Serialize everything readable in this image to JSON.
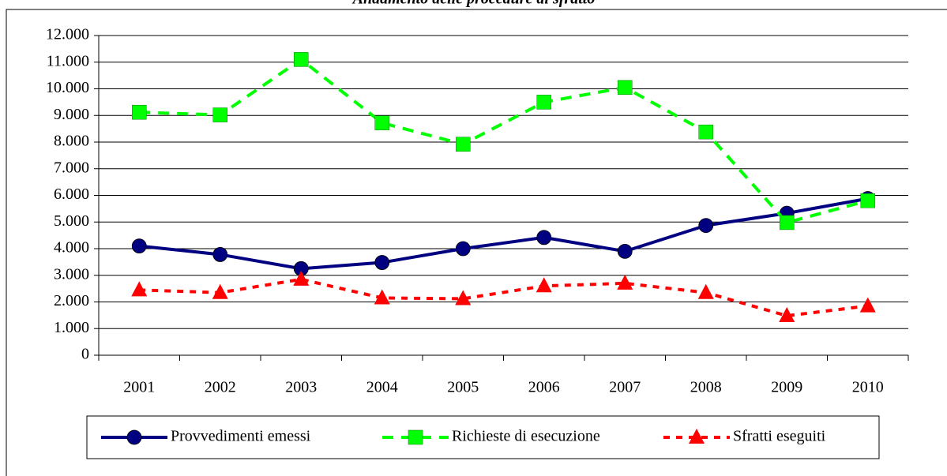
{
  "chart_data": {
    "type": "line",
    "title": "Andamento delle procedure di sfratto",
    "categories": [
      "2001",
      "2002",
      "2003",
      "2004",
      "2005",
      "2006",
      "2007",
      "2008",
      "2009",
      "2010"
    ],
    "series": [
      {
        "name": "Provvedimenti emessi",
        "color": "#000080",
        "marker": "circle",
        "dash": "solid",
        "values": [
          4100,
          3780,
          3250,
          3480,
          4000,
          4420,
          3900,
          4870,
          5330,
          5880
        ]
      },
      {
        "name": "Richieste di esecuzione",
        "color": "#00ff00",
        "marker": "square",
        "dash": "dashed",
        "values": [
          9120,
          9020,
          11100,
          8720,
          7920,
          9500,
          10050,
          8380,
          4980,
          5800
        ]
      },
      {
        "name": "Sfratti eseguiti",
        "color": "#ff0000",
        "marker": "triangle",
        "dash": "dotted",
        "values": [
          2450,
          2350,
          2850,
          2150,
          2120,
          2600,
          2700,
          2350,
          1480,
          1850
        ]
      }
    ],
    "ylim": [
      0,
      12000
    ],
    "yticks": [
      0,
      {
        "value": 1000,
        "label": "1.000"
      },
      {
        "value": 2000,
        "label": "2.000"
      },
      {
        "value": 3000,
        "label": "3.000"
      },
      {
        "value": 4000,
        "label": "4.000"
      },
      {
        "value": 5000,
        "label": "5.000"
      },
      {
        "value": 6000,
        "label": "6.000"
      },
      {
        "value": 7000,
        "label": "7.000"
      },
      {
        "value": 8000,
        "label": "8.000"
      },
      {
        "value": 9000,
        "label": "9.000"
      },
      {
        "value": 10000,
        "label": "10.000"
      },
      {
        "value": 11000,
        "label": "11.000"
      },
      {
        "value": 12000,
        "label": "12.000"
      }
    ],
    "grid": true,
    "legend": "bottom"
  }
}
